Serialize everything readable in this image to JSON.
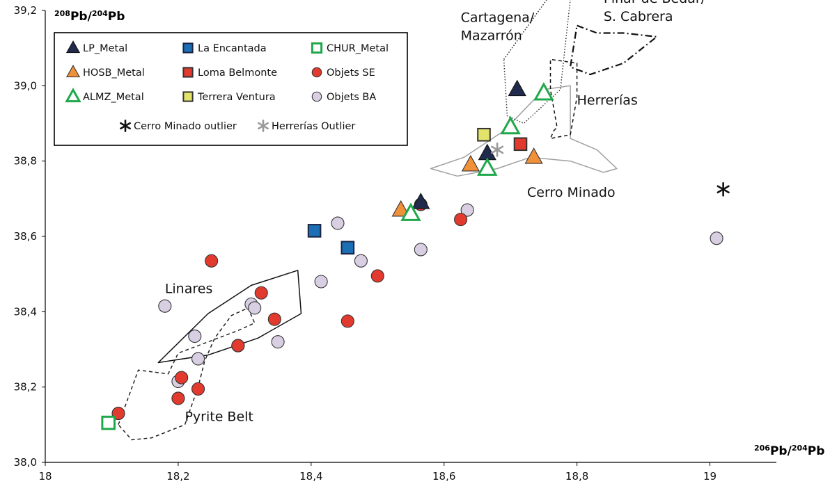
{
  "chart_data": {
    "type": "scatter",
    "xlim": [
      18.0,
      19.1
    ],
    "ylim": [
      38.0,
      39.2
    ],
    "x_ticks": [
      "18",
      "18,2",
      "18,4",
      "18,6",
      "18,8",
      "19"
    ],
    "y_ticks": [
      "38,0",
      "38,2",
      "38,4",
      "38,6",
      "38,8",
      "39,0",
      "39,2"
    ],
    "x_tick_values": [
      18.0,
      18.2,
      18.4,
      18.6,
      18.8,
      19.0
    ],
    "y_tick_values": [
      38.0,
      38.2,
      38.4,
      38.6,
      38.8,
      39.0,
      39.2
    ],
    "xlabel": {
      "sup1": "206",
      "base1": "Pb/",
      "sup2": "204",
      "base2": "Pb"
    },
    "ylabel": {
      "sup1": "208",
      "base1": "Pb/",
      "sup2": "204",
      "base2": "Pb"
    },
    "grid": false,
    "legend_position": "top-left",
    "series": [
      {
        "name": "LP_Metal",
        "marker": "triangle-filled",
        "fill": "#1f2a4d",
        "stroke": "#111111",
        "points": [
          [
            18.71,
            38.99
          ],
          [
            18.665,
            38.82
          ],
          [
            18.565,
            38.69
          ]
        ]
      },
      {
        "name": "HOSB_Metal",
        "marker": "triangle-filled",
        "fill": "#f0913a",
        "stroke": "#333333",
        "points": [
          [
            18.64,
            38.79
          ],
          [
            18.735,
            38.81
          ],
          [
            18.535,
            38.67
          ]
        ]
      },
      {
        "name": "ALMZ_Metal",
        "marker": "triangle-open",
        "fill": "#ffffff",
        "stroke": "#1fa84a",
        "points": [
          [
            18.75,
            38.98
          ],
          [
            18.7,
            38.89
          ],
          [
            18.665,
            38.78
          ],
          [
            18.55,
            38.66
          ]
        ]
      },
      {
        "name": "La Encantada",
        "marker": "square-filled",
        "fill": "#1a6fb5",
        "stroke": "#1a2340",
        "points": [
          [
            18.405,
            38.615
          ],
          [
            18.455,
            38.57
          ]
        ]
      },
      {
        "name": "Loma Belmonte",
        "marker": "square-filled",
        "fill": "#e23a2e",
        "stroke": "#333333",
        "points": [
          [
            18.715,
            38.845
          ]
        ]
      },
      {
        "name": "Terrera Ventura",
        "marker": "square-filled",
        "fill": "#e3e26a",
        "stroke": "#333333",
        "points": [
          [
            18.66,
            38.87
          ]
        ]
      },
      {
        "name": "CHUR_Metal",
        "marker": "square-open",
        "fill": "#ffffff",
        "stroke": "#1fa84a",
        "points": [
          [
            18.095,
            38.105
          ]
        ]
      },
      {
        "name": "Objets SE",
        "marker": "circle-filled",
        "fill": "#e23a2e",
        "stroke": "#333333",
        "points": [
          [
            18.25,
            38.535
          ],
          [
            18.325,
            38.45
          ],
          [
            18.345,
            38.38
          ],
          [
            18.29,
            38.31
          ],
          [
            18.205,
            38.225
          ],
          [
            18.2,
            38.17
          ],
          [
            18.23,
            38.195
          ],
          [
            18.11,
            38.13
          ],
          [
            18.455,
            38.375
          ],
          [
            18.5,
            38.495
          ],
          [
            18.565,
            38.685
          ],
          [
            18.625,
            38.645
          ]
        ]
      },
      {
        "name": "Objets BA",
        "marker": "circle-filled",
        "fill": "#d9cfe3",
        "stroke": "#333333",
        "points": [
          [
            18.18,
            38.415
          ],
          [
            18.225,
            38.335
          ],
          [
            18.23,
            38.275
          ],
          [
            18.2,
            38.215
          ],
          [
            18.29,
            38.31
          ],
          [
            18.31,
            38.42
          ],
          [
            18.315,
            38.41
          ],
          [
            18.35,
            38.32
          ],
          [
            18.415,
            38.48
          ],
          [
            18.44,
            38.635
          ],
          [
            18.475,
            38.535
          ],
          [
            18.565,
            38.565
          ],
          [
            18.635,
            38.67
          ],
          [
            19.01,
            38.595
          ]
        ]
      },
      {
        "name": "Cerro Minado outlier",
        "marker": "asterisk",
        "fill": "#111111",
        "stroke": "#111111",
        "points": [
          [
            19.02,
            38.725
          ]
        ]
      },
      {
        "name": "Herrerías Outlier",
        "marker": "asterisk",
        "fill": "#9a9a9a",
        "stroke": "#9a9a9a",
        "points": [
          [
            18.68,
            38.83
          ]
        ]
      }
    ],
    "regions": [
      {
        "name": "Linares",
        "label": "Linares",
        "style": "solid",
        "color": "#111111",
        "label_at": [
          18.18,
          38.45
        ],
        "path": [
          [
            18.17,
            38.265
          ],
          [
            18.245,
            38.395
          ],
          [
            18.31,
            38.47
          ],
          [
            18.38,
            38.51
          ],
          [
            18.385,
            38.395
          ],
          [
            18.32,
            38.33
          ],
          [
            18.245,
            38.285
          ],
          [
            18.17,
            38.265
          ]
        ]
      },
      {
        "name": "Pyrite Belt",
        "label": "Pyrite Belt",
        "style": "dashed",
        "color": "#222222",
        "label_at": [
          18.21,
          38.11
        ],
        "path": [
          [
            18.11,
            38.1
          ],
          [
            18.14,
            38.245
          ],
          [
            18.185,
            38.235
          ],
          [
            18.2,
            38.29
          ],
          [
            18.245,
            38.32
          ],
          [
            18.29,
            38.35
          ],
          [
            18.315,
            38.37
          ],
          [
            18.305,
            38.41
          ],
          [
            18.28,
            38.39
          ],
          [
            18.255,
            38.33
          ],
          [
            18.24,
            38.27
          ],
          [
            18.23,
            38.2
          ],
          [
            18.21,
            38.1
          ],
          [
            18.16,
            38.065
          ],
          [
            18.13,
            38.06
          ],
          [
            18.11,
            38.1
          ]
        ]
      },
      {
        "name": "Cerro Minado",
        "label": "Cerro Minado",
        "style": "solid",
        "color": "#a0a0a0",
        "label_at": [
          18.725,
          38.705
        ],
        "path": [
          [
            18.58,
            38.78
          ],
          [
            18.63,
            38.81
          ],
          [
            18.69,
            38.88
          ],
          [
            18.75,
            38.99
          ],
          [
            18.79,
            39.0
          ],
          [
            18.79,
            38.86
          ],
          [
            18.83,
            38.83
          ],
          [
            18.86,
            38.78
          ],
          [
            18.84,
            38.77
          ],
          [
            18.79,
            38.8
          ],
          [
            18.73,
            38.81
          ],
          [
            18.68,
            38.78
          ],
          [
            18.62,
            38.76
          ],
          [
            18.58,
            38.78
          ]
        ]
      },
      {
        "name": "Cartagena/ Mazarrón",
        "label": "Cartagena/",
        "label2": "Mazarrón",
        "style": "dotted",
        "color": "#333333",
        "label_at": [
          18.625,
          39.17
        ],
        "path": [
          [
            18.69,
            39.07
          ],
          [
            18.755,
            39.23
          ],
          [
            18.79,
            39.23
          ],
          [
            18.775,
            38.99
          ],
          [
            18.72,
            38.9
          ],
          [
            18.695,
            38.92
          ],
          [
            18.69,
            39.07
          ]
        ]
      },
      {
        "name": "Herrerías",
        "label": "Herrerías",
        "style": "dashed",
        "color": "#111111",
        "label_at": [
          18.8,
          38.95
        ],
        "path": [
          [
            18.765,
            38.88
          ],
          [
            18.77,
            38.89
          ],
          [
            18.76,
            38.99
          ],
          [
            18.76,
            39.07
          ],
          [
            18.8,
            39.06
          ],
          [
            18.8,
            38.97
          ],
          [
            18.79,
            38.87
          ],
          [
            18.76,
            38.86
          ],
          [
            18.765,
            38.88
          ]
        ]
      },
      {
        "name": "Pinar de Bédar/ S. Cabrera",
        "label": "Pinar de Bédar/",
        "label2": "S. Cabrera",
        "style": "dashdot",
        "color": "#111111",
        "label_at": [
          18.84,
          39.22
        ],
        "path": [
          [
            18.8,
            39.16
          ],
          [
            18.83,
            39.14
          ],
          [
            18.87,
            39.14
          ],
          [
            18.92,
            39.13
          ],
          [
            18.87,
            39.06
          ],
          [
            18.82,
            39.03
          ],
          [
            18.79,
            39.05
          ],
          [
            18.8,
            39.16
          ]
        ]
      }
    ]
  }
}
